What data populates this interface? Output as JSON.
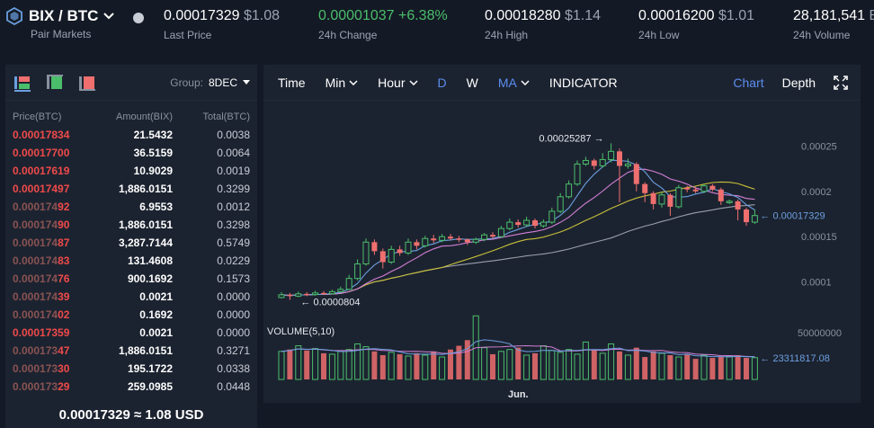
{
  "header": {
    "pair": "BIX / BTC",
    "pair_sub": "Pair Markets",
    "last_price": "0.00017329",
    "last_price_usd": "$1.08",
    "last_price_label": "Last Price",
    "change": "0.00001037 +6.38%",
    "change_label": "24h Change",
    "high": "0.00018280",
    "high_usd": "$1.14",
    "high_label": "24h High",
    "low": "0.00016200",
    "low_usd": "$1.01",
    "low_label": "24h Low",
    "volume": "28,181,541",
    "volume_suffix": "B",
    "volume_label": "24h Volume"
  },
  "book": {
    "group_label": "Group:",
    "group_value": "8DEC",
    "col_price": "Price(BTC)",
    "col_amount": "Amount(BIX)",
    "col_total": "Total(BTC)",
    "rows": [
      {
        "pa": "0.00017834",
        "pb": "",
        "amount": "21.5432",
        "total": "0.0038"
      },
      {
        "pa": "0.00017700",
        "pb": "",
        "amount": "36.5159",
        "total": "0.0064"
      },
      {
        "pa": "0.00017619",
        "pb": "",
        "amount": "10.9029",
        "total": "0.0019"
      },
      {
        "pa": "0.00017497",
        "pb": "",
        "amount": "1,886.0151",
        "total": "0.3299"
      },
      {
        "pa": "0.000174",
        "pb": "92",
        "amount": "6.9553",
        "total": "0.0012"
      },
      {
        "pa": "0.000174",
        "pb": "90",
        "amount": "1,886.0151",
        "total": "0.3298"
      },
      {
        "pa": "0.000174",
        "pb": "87",
        "amount": "3,287.7144",
        "total": "0.5749"
      },
      {
        "pa": "0.000174",
        "pb": "83",
        "amount": "131.4608",
        "total": "0.0229"
      },
      {
        "pa": "0.000174",
        "pb": "76",
        "amount": "900.1692",
        "total": "0.1573"
      },
      {
        "pa": "0.000174",
        "pb": "39",
        "amount": "0.0021",
        "total": "0.0000"
      },
      {
        "pa": "0.000174",
        "pb": "02",
        "amount": "0.1692",
        "total": "0.0000"
      },
      {
        "pa": "0.00017359",
        "pb": "",
        "amount": "0.0021",
        "total": "0.0000"
      },
      {
        "pa": "0.000173",
        "pb": "47",
        "amount": "1,886.0151",
        "total": "0.3271"
      },
      {
        "pa": "0.000173",
        "pb": "30",
        "amount": "195.1722",
        "total": "0.0338"
      },
      {
        "pa": "0.000173",
        "pb": "29",
        "amount": "259.0985",
        "total": "0.0448"
      }
    ],
    "last_line": "0.00017329 ≈ 1.08 USD"
  },
  "toolbar": {
    "time": "Time",
    "min": "Min",
    "hour": "Hour",
    "d": "D",
    "w": "W",
    "ma": "MA",
    "indicator": "INDICATOR",
    "chart": "Chart",
    "depth": "Depth"
  },
  "chart_data": {
    "type": "candlestick",
    "y_ticks": [
      "0.00025",
      "0.0002",
      "0.00015",
      "0.0001"
    ],
    "ylim": [
      7e-05,
      0.00028
    ],
    "max_label": "0.00025287 →",
    "min_label": "← 0.0000804",
    "current_label": "← 0.00017329",
    "volume_label": "VOLUME(5,10)",
    "volume_tick": "50000000",
    "volume_current_label": "← 23311817.08",
    "vmax": 50000000,
    "x_label": "Jun.",
    "colors": {
      "up": "#4bbe6b",
      "down": "#ef6f6f",
      "ma5": "#6b9fe0",
      "ma10": "#d27fd6",
      "ma30": "#c8c03a",
      "ma60": "#9aa0aa"
    },
    "candles": [
      [
        8.3e-05,
        8.6e-05,
        8.9e-05,
        8.2e-05
      ],
      [
        8.6e-05,
        8.45e-05,
        8.8e-05,
        8.04e-05
      ],
      [
        8.45e-05,
        8.7e-05,
        8.95e-05,
        8.35e-05
      ],
      [
        8.7e-05,
        8.62e-05,
        8.9e-05,
        8.45e-05
      ],
      [
        8.62e-05,
        8.8e-05,
        9.05e-05,
        8.5e-05
      ],
      [
        8.8e-05,
        8.72e-05,
        9e-05,
        8.6e-05
      ],
      [
        8.72e-05,
        8.95e-05,
        9.15e-05,
        8.65e-05
      ],
      [
        8.95e-05,
        9.2e-05,
        9.5e-05,
        8.8e-05
      ],
      [
        9.2e-05,
        0.000104,
        0.000108,
        9.1e-05
      ],
      [
        0.000104,
        0.00012,
        0.000125,
        0.000102
      ],
      [
        0.00012,
        0.000144,
        0.000148,
        0.000118
      ],
      [
        0.000144,
        0.000134,
        0.000147,
        0.00013
      ],
      [
        0.000134,
        0.000122,
        0.000137,
        0.000115
      ],
      [
        0.000122,
        0.000136,
        0.00014,
        0.00012
      ],
      [
        0.000136,
        0.000132,
        0.00014,
        0.000129
      ],
      [
        0.000132,
        0.000144,
        0.000148,
        0.00013
      ],
      [
        0.000144,
        0.00014,
        0.000147,
        0.000136
      ],
      [
        0.00014,
        0.000148,
        0.000151,
        0.000138
      ],
      [
        0.000148,
        0.000146,
        0.000152,
        0.000143
      ],
      [
        0.000146,
        0.00015,
        0.000153,
        0.000144
      ],
      [
        0.00015,
        0.000148,
        0.000153,
        0.000146
      ],
      [
        0.000148,
        0.000147,
        0.000151,
        0.000144
      ],
      [
        0.000147,
        0.000144,
        0.000148,
        0.000141
      ],
      [
        0.000144,
        0.000147,
        0.000149,
        0.000142
      ],
      [
        0.000147,
        0.000152,
        0.000154,
        0.000145
      ],
      [
        0.000152,
        0.00015,
        0.000155,
        0.000148
      ],
      [
        0.00015,
        0.000159,
        0.000162,
        0.000149
      ],
      [
        0.000159,
        0.000166,
        0.00017,
        0.000157
      ],
      [
        0.000166,
        0.000163,
        0.000169,
        0.00016
      ],
      [
        0.000163,
        0.000168,
        0.000172,
        0.000161
      ],
      [
        0.000168,
        0.000162,
        0.00017,
        0.000159
      ],
      [
        0.000162,
        0.000166,
        0.000169,
        0.00016
      ],
      [
        0.000166,
        0.000178,
        0.000182,
        0.000164
      ],
      [
        0.000178,
        0.000194,
        0.000198,
        0.000176
      ],
      [
        0.000194,
        0.000208,
        0.000212,
        0.000192
      ],
      [
        0.000208,
        0.00023,
        0.000234,
        0.000206
      ],
      [
        0.00023,
        0.000234,
        0.000238,
        0.000228
      ],
      [
        0.000234,
        0.000228,
        0.000236,
        0.000224
      ],
      [
        0.000228,
        0.000235,
        0.000242,
        0.000226
      ],
      [
        0.000235,
        0.000244,
        0.0002529,
        0.000232
      ],
      [
        0.000244,
        0.000228,
        0.000247,
        0.000188
      ],
      [
        0.000228,
        0.00023,
        0.000236,
        0.000225
      ],
      [
        0.00023,
        0.000208,
        0.000232,
        0.0002
      ],
      [
        0.000208,
        0.000198,
        0.00021,
        0.000188
      ],
      [
        0.000198,
        0.000186,
        0.0002,
        0.00018
      ],
      [
        0.000186,
        0.000196,
        0.000199,
        0.000182
      ],
      [
        0.000196,
        0.000183,
        0.000198,
        0.000173
      ],
      [
        0.000183,
        0.000204,
        0.000207,
        0.000181
      ],
      [
        0.000204,
        0.000202,
        0.000206,
        0.000199
      ],
      [
        0.000202,
        0.0002,
        0.000205,
        0.000198
      ],
      [
        0.0002,
        0.000206,
        0.000208,
        0.000198
      ],
      [
        0.000206,
        0.000202,
        0.000208,
        0.0002
      ],
      [
        0.000202,
        0.000189,
        0.000204,
        0.000185
      ],
      [
        0.000189,
        0.000189,
        0.000191,
        0.000186
      ],
      [
        0.000189,
        0.00018,
        0.000191,
        0.000168
      ],
      [
        0.00018,
        0.000166,
        0.000182,
        0.000162
      ],
      [
        0.000166,
        0.0001733,
        0.00018,
        0.000164
      ]
    ],
    "volumes": [
      30000000.0,
      32000000.0,
      36000000.0,
      31000000.0,
      33000000.0,
      28000000.0,
      27000000.0,
      30000000.0,
      32000000.0,
      38000000.0,
      35000000.0,
      30000000.0,
      26000000.0,
      29000000.0,
      27000000.0,
      25000000.0,
      28000000.0,
      26000000.0,
      30000000.0,
      24000000.0,
      32000000.0,
      36000000.0,
      42000000.0,
      68000000.0,
      34000000.0,
      27000000.0,
      30000000.0,
      32000000.0,
      34000000.0,
      26000000.0,
      28000000.0,
      36000000.0,
      31000000.0,
      29000000.0,
      32000000.0,
      27000000.0,
      40000000.0,
      32000000.0,
      28000000.0,
      38000000.0,
      30000000.0,
      26000000.0,
      34000000.0,
      24000000.0,
      30000000.0,
      28000000.0,
      26000000.0,
      24000000.0,
      27000000.0,
      22000000.0,
      26000000.0,
      23000000.0,
      24000000.0,
      25000000.0,
      26000000.0,
      23000000.0,
      23300000.0
    ]
  }
}
